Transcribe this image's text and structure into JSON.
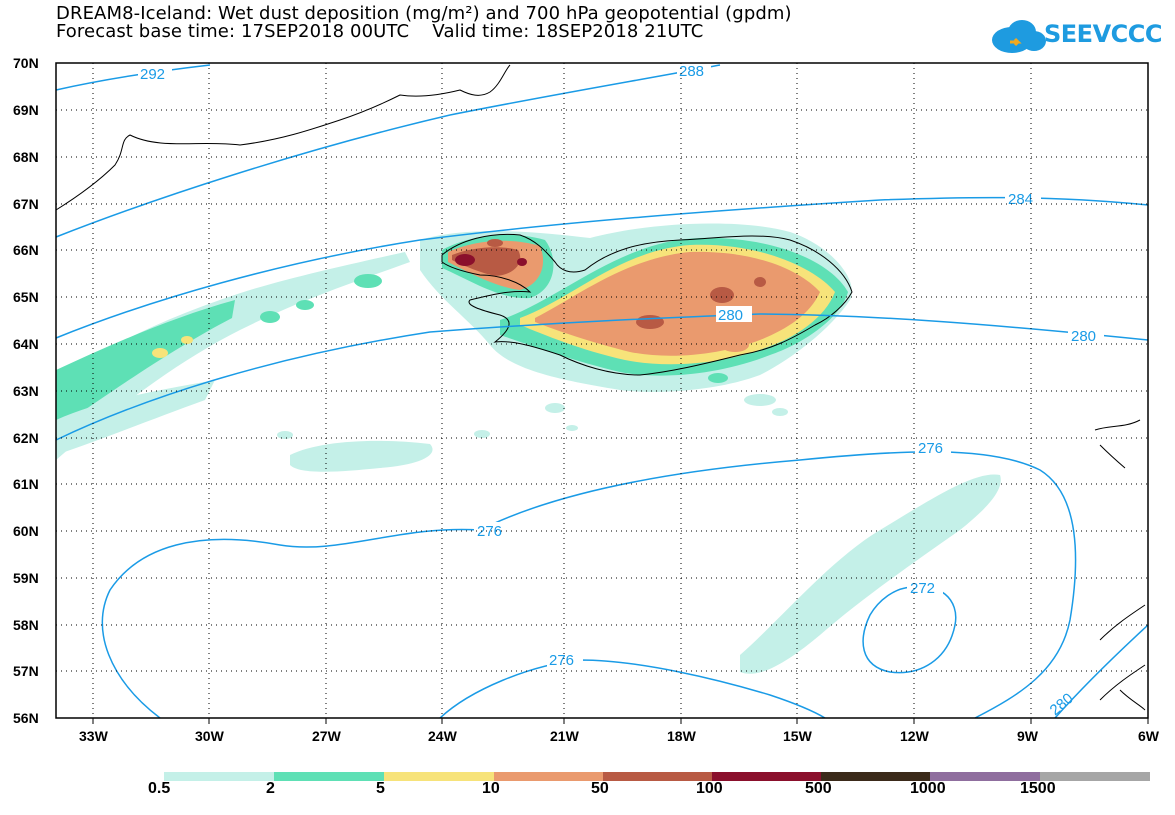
{
  "title_line1": "DREAM8-Iceland: Wet dust deposition (mg/m²) and 700 hPa geopotential (gpdm)",
  "title_line2": "Forecast base time: 17SEP2018 00UTC    Valid time: 18SEP2018 21UTC",
  "logo_text": "SEEVCCC",
  "axes": {
    "lat_ticks": [
      "70N",
      "69N",
      "68N",
      "67N",
      "66N",
      "65N",
      "64N",
      "63N",
      "62N",
      "61N",
      "60N",
      "59N",
      "58N",
      "57N",
      "56N"
    ],
    "lon_ticks": [
      "33W",
      "30W",
      "27W",
      "24W",
      "21W",
      "18W",
      "15W",
      "12W",
      "9W",
      "6W"
    ]
  },
  "contour_labels": {
    "c292": "292",
    "c288": "288",
    "c284": "284",
    "c280a": "280",
    "c280b": "280",
    "c276a": "276",
    "c276b": "276",
    "c276c": "276",
    "c272": "272",
    "c280c": "280"
  },
  "legend": {
    "labels": [
      "0.5",
      "2",
      "5",
      "10",
      "50",
      "100",
      "500",
      "1000",
      "1500"
    ],
    "colors": [
      "#c4f0e8",
      "#5ee0b5",
      "#f7e37a",
      "#ea9a6e",
      "#b85a44",
      "#8a0f2c",
      "#3b2a1a",
      "#8f6e9e",
      "#a6a6a6"
    ]
  },
  "colors": {
    "contour": "#1a9be6",
    "coast": "#000000"
  }
}
